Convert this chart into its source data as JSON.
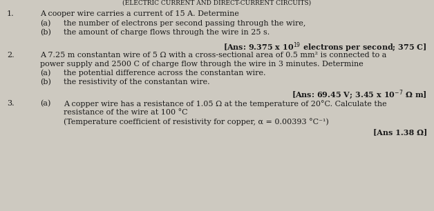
{
  "bg_color": "#cdc9c0",
  "text_color": "#1a1a1a",
  "font_size": 8.0,
  "font_family": "DejaVu Serif",
  "q1_num": "1.",
  "q1_intro": "A cooper wire carries a current of 15 A. Determine",
  "q1a_label": "(a)",
  "q1a_text": "the number of electrons per second passing through the wire,",
  "q1b_label": "(b)",
  "q1b_text": "the amount of charge flows through the wire in 25 s.",
  "q1_ans": "[Ans: 9.375 x 10$^{19}$ electrons per second; 375 C]",
  "q2_num": "2.",
  "q2_line1": "A 7.25 m constantan wire of 5 Ω with a cross-sectional area of 0.5 mm² is connected to a",
  "q2_line2": "power supply and 2500 C of charge flow through the wire in 3 minutes. Determine",
  "q2a_label": "(a)",
  "q2a_text": "the potential difference across the constantan wire.",
  "q2b_label": "(b)",
  "q2b_text": "the resistivity of the constantan wire.",
  "q2_ans": "[Ans: 69.45 V; 3.45 x 10$^{-7}$ Ω m]",
  "q3_num": "3.",
  "q3a_label": "(a)",
  "q3a_line1": "A copper wire has a resistance of 1.05 Ω at the temperature of 20°C. Calculate the",
  "q3a_line2": "resistance of the wire at 100 °C",
  "q3a_line3": "(Temperature coefficient of resistivity for copper, α = 0.00393 °C⁻¹)",
  "q3_ans": "[Ans 1.38 Ω]"
}
